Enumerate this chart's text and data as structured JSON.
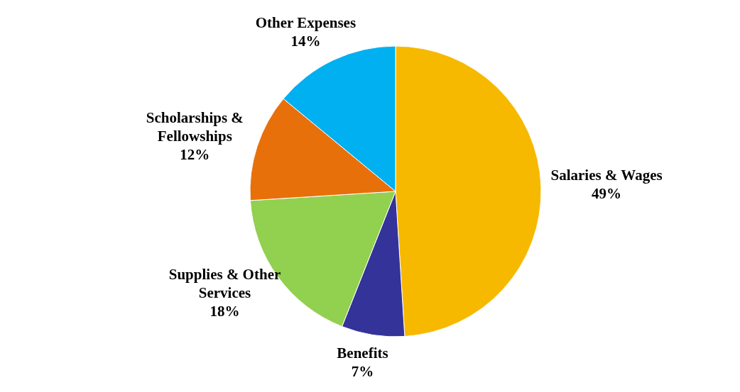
{
  "chart_data": {
    "type": "pie",
    "categories": [
      "Salaries & Wages",
      "Benefits",
      "Supplies & Other Services",
      "Scholarships & Fellowships",
      "Other Expenses"
    ],
    "values": [
      49,
      7,
      18,
      12,
      14
    ],
    "colors": [
      "#f7b800",
      "#333399",
      "#92d050",
      "#e8700a",
      "#00b0f0"
    ],
    "data_labels": true,
    "value_labels": [
      "49%",
      "7%",
      "18%",
      "12%",
      "14%"
    ],
    "legend": false
  }
}
